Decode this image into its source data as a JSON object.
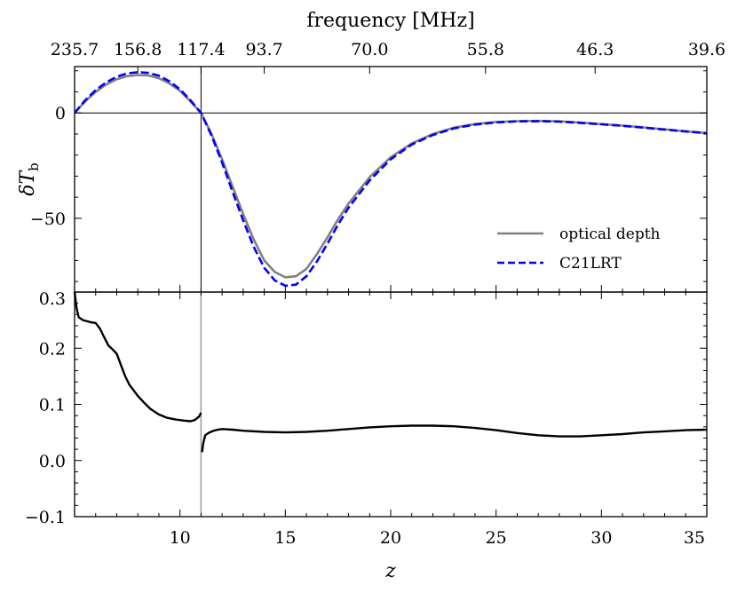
{
  "chart_data": [
    {
      "type": "line",
      "panel": "top",
      "xlabel": "z",
      "ylabel": "δT_b",
      "ylim": [
        -85,
        22
      ],
      "xlim": [
        5,
        35
      ],
      "yticks": [
        0,
        -50
      ],
      "top_axis": {
        "label": "frequency [MHz]",
        "tick_z": [
          5,
          8,
          11,
          14,
          19,
          24.5,
          29.7,
          35
        ],
        "tick_labels": [
          "235.7",
          "156.8",
          "117.4",
          "93.7",
          "70.0",
          "55.8",
          "46.3",
          "39.6"
        ]
      },
      "reference_lines": {
        "x": 11,
        "y": 0
      },
      "legend": {
        "placement": "lower-right",
        "entries": [
          "optical depth",
          "C21LRT"
        ]
      },
      "series": [
        {
          "name": "optical depth",
          "color": "#808080",
          "style": "solid",
          "x": [
            5.0,
            5.5,
            6.0,
            6.5,
            7.0,
            7.5,
            8.0,
            8.5,
            9.0,
            9.5,
            10.0,
            10.5,
            11.0,
            11.5,
            12.0,
            12.5,
            13.0,
            13.5,
            14.0,
            14.5,
            15.0,
            15.5,
            16.0,
            16.5,
            17.0,
            17.5,
            18.0,
            19.0,
            20.0,
            21.0,
            22.0,
            23.0,
            24.0,
            25.0,
            26.0,
            27.0,
            28.0,
            29.0,
            30.0,
            31.0,
            32.0,
            33.0,
            34.0,
            35.0
          ],
          "y": [
            0.0,
            5.5,
            10.0,
            13.5,
            16.0,
            17.5,
            18.0,
            17.8,
            16.5,
            14.0,
            10.5,
            5.5,
            0.0,
            -10.0,
            -22.0,
            -35.0,
            -48.0,
            -60.0,
            -70.0,
            -75.5,
            -78.0,
            -77.5,
            -74.0,
            -67.0,
            -59.0,
            -50.5,
            -43.0,
            -30.5,
            -21.0,
            -14.5,
            -10.0,
            -7.0,
            -5.3,
            -4.3,
            -3.9,
            -3.8,
            -4.0,
            -4.6,
            -5.3,
            -6.0,
            -6.9,
            -7.8,
            -8.7,
            -9.5
          ]
        },
        {
          "name": "C21LRT",
          "color": "#0000ff",
          "style": "dashed",
          "x": [
            5.0,
            5.5,
            6.0,
            6.5,
            7.0,
            7.5,
            8.0,
            8.5,
            9.0,
            9.5,
            10.0,
            10.5,
            11.0,
            11.5,
            12.0,
            12.5,
            13.0,
            13.5,
            14.0,
            14.5,
            15.0,
            15.5,
            16.0,
            16.5,
            17.0,
            17.5,
            18.0,
            19.0,
            20.0,
            21.0,
            22.0,
            23.0,
            24.0,
            25.0,
            26.0,
            27.0,
            28.0,
            29.0,
            30.0,
            31.0,
            32.0,
            33.0,
            34.0,
            35.0
          ],
          "y": [
            0.0,
            6.0,
            10.8,
            14.5,
            17.2,
            18.8,
            19.3,
            19.0,
            17.7,
            15.0,
            11.2,
            6.0,
            0.0,
            -10.8,
            -23.5,
            -37.5,
            -51.0,
            -63.5,
            -73.5,
            -79.5,
            -82.0,
            -81.5,
            -77.5,
            -70.5,
            -62.0,
            -53.0,
            -45.0,
            -32.0,
            -22.0,
            -15.0,
            -10.5,
            -7.3,
            -5.5,
            -4.5,
            -4.0,
            -3.9,
            -4.1,
            -4.7,
            -5.4,
            -6.1,
            -7.0,
            -7.9,
            -8.8,
            -9.6
          ]
        }
      ]
    },
    {
      "type": "line",
      "panel": "bottom",
      "xlabel": "z",
      "ylabel": "",
      "ylim": [
        -0.1,
        0.3
      ],
      "xlim": [
        5,
        35
      ],
      "yticks": [
        0.3,
        0.2,
        0.1,
        0.0,
        -0.1
      ],
      "xticks": [
        10,
        15,
        20,
        25,
        30,
        35
      ],
      "reference_lines": {
        "x": 11
      },
      "series": [
        {
          "color": "#000000",
          "style": "solid",
          "x": [
            5.0,
            5.1,
            5.2,
            5.4,
            5.6,
            5.8,
            6.0,
            6.2,
            6.4,
            6.6,
            6.8,
            7.0,
            7.2,
            7.4,
            7.6,
            7.8,
            8.0,
            8.3,
            8.6,
            9.0,
            9.4,
            9.8,
            10.2,
            10.5,
            10.7,
            10.9,
            11.0
          ],
          "y": [
            0.3,
            0.27,
            0.255,
            0.25,
            0.248,
            0.246,
            0.245,
            0.235,
            0.22,
            0.205,
            0.198,
            0.19,
            0.17,
            0.15,
            0.135,
            0.125,
            0.115,
            0.103,
            0.092,
            0.082,
            0.076,
            0.073,
            0.071,
            0.07,
            0.072,
            0.078,
            0.085
          ]
        },
        {
          "color": "#000000",
          "style": "solid",
          "x": [
            11.05,
            11.1,
            11.2,
            11.4,
            11.6,
            11.8,
            12.0,
            12.5,
            13.0,
            14.0,
            15.0,
            16.0,
            17.0,
            18.0,
            19.0,
            20.0,
            21.0,
            22.0,
            23.0,
            24.0,
            25.0,
            26.0,
            27.0,
            28.0,
            29.0,
            30.0,
            31.0,
            32.0,
            33.0,
            34.0,
            35.0
          ],
          "y": [
            0.015,
            0.03,
            0.045,
            0.05,
            0.053,
            0.055,
            0.056,
            0.055,
            0.053,
            0.051,
            0.05,
            0.051,
            0.053,
            0.056,
            0.059,
            0.061,
            0.062,
            0.062,
            0.061,
            0.058,
            0.054,
            0.049,
            0.045,
            0.043,
            0.043,
            0.045,
            0.047,
            0.05,
            0.052,
            0.054,
            0.055
          ]
        }
      ]
    }
  ]
}
